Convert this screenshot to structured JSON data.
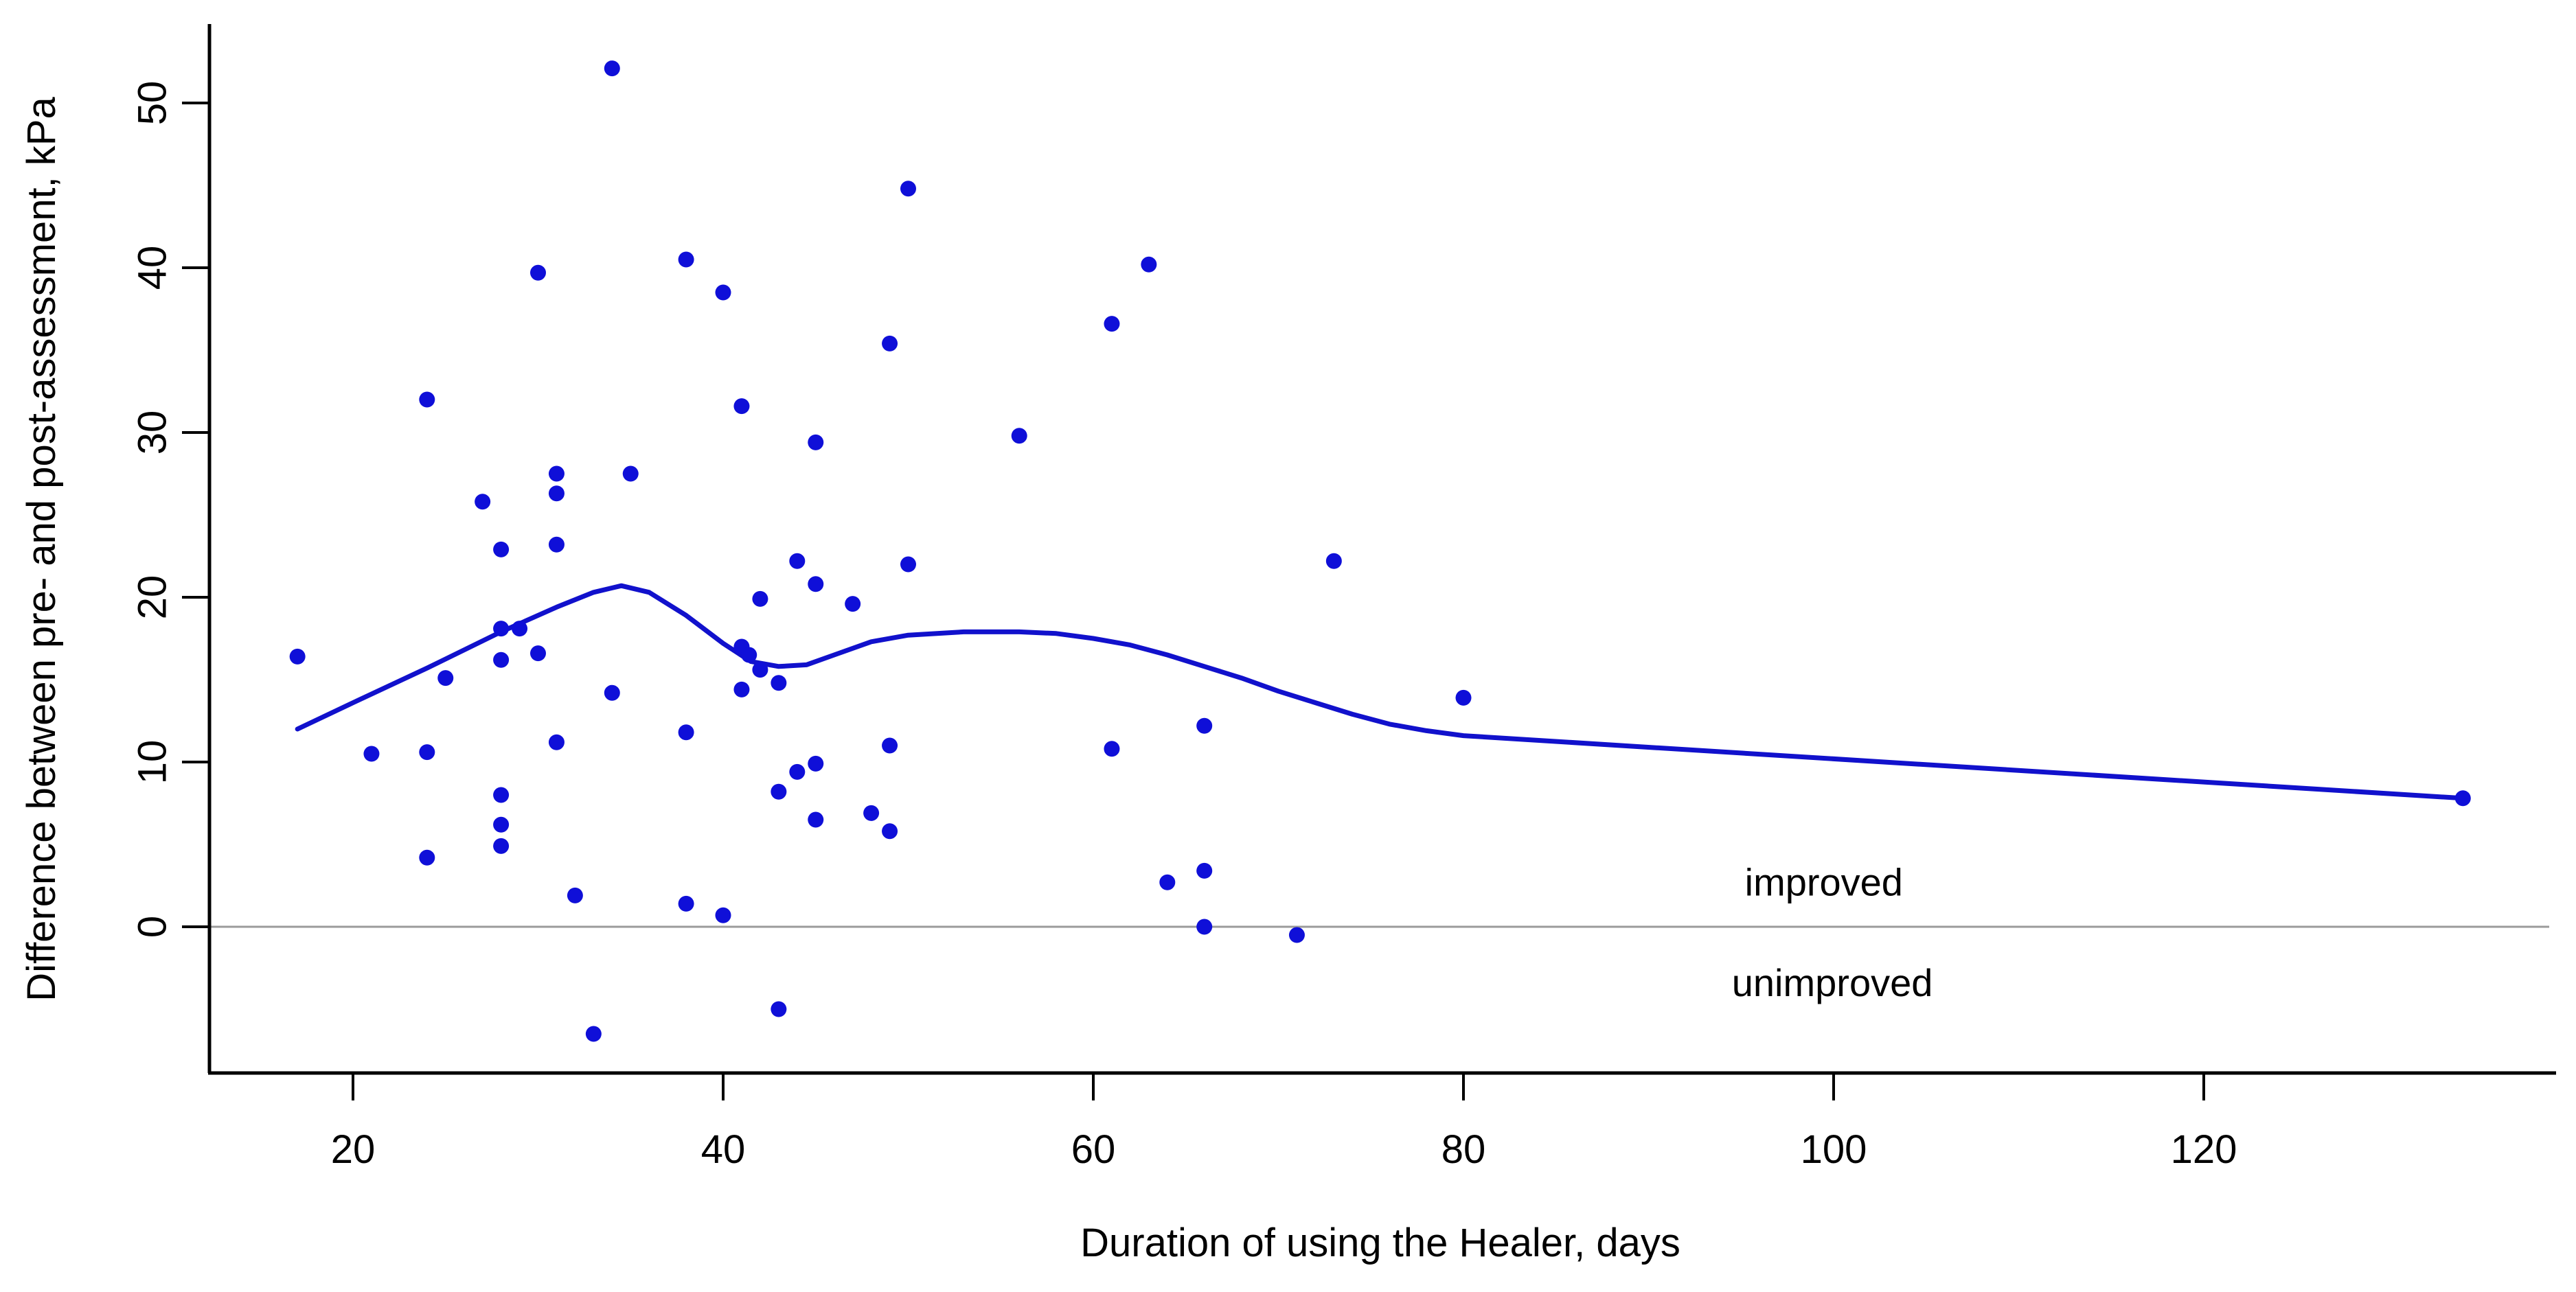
{
  "chart_data": {
    "type": "scatter",
    "title": "",
    "xlabel": "Duration of using the Healer, days",
    "ylabel": "Difference between pre- and post-assessment, kPa",
    "xlim": [
      12.2,
      139.2
    ],
    "ylim": [
      -8.9,
      54.6
    ],
    "x_ticks": [
      20,
      40,
      60,
      80,
      100,
      120
    ],
    "y_ticks": [
      0,
      10,
      20,
      30,
      40,
      50
    ],
    "grid": false,
    "legend": "none",
    "point_color": "#0f0fd8",
    "line_color": "#1111cc",
    "zero_line_color": "#9b9b9b",
    "axis_color": "#000000",
    "annotations": [
      {
        "id": "improved",
        "text": "improved",
        "x": 95.2,
        "y": 2.7
      },
      {
        "id": "unimproved",
        "text": "unimproved",
        "x": 94.5,
        "y": -3.4
      }
    ],
    "points": [
      [
        17,
        16.4
      ],
      [
        21,
        10.5
      ],
      [
        24,
        32.0
      ],
      [
        24,
        10.6
      ],
      [
        24,
        4.2
      ],
      [
        25,
        15.1
      ],
      [
        27,
        25.8
      ],
      [
        28,
        22.9
      ],
      [
        28,
        18.1
      ],
      [
        28,
        16.2
      ],
      [
        28,
        8.0
      ],
      [
        28,
        6.2
      ],
      [
        28,
        4.9
      ],
      [
        29,
        18.1
      ],
      [
        30,
        39.7
      ],
      [
        30,
        16.6
      ],
      [
        31,
        27.5
      ],
      [
        31,
        26.3
      ],
      [
        31,
        23.2
      ],
      [
        31,
        11.2
      ],
      [
        32,
        1.9
      ],
      [
        33,
        -6.5
      ],
      [
        34,
        52.1
      ],
      [
        34,
        14.2
      ],
      [
        35,
        27.5
      ],
      [
        38,
        40.5
      ],
      [
        38,
        11.8
      ],
      [
        38,
        1.4
      ],
      [
        40,
        38.5
      ],
      [
        40,
        0.7
      ],
      [
        41,
        31.6
      ],
      [
        41,
        17.0
      ],
      [
        41.4,
        16.5
      ],
      [
        41,
        14.4
      ],
      [
        42,
        19.9
      ],
      [
        42,
        15.6
      ],
      [
        43,
        14.8
      ],
      [
        43,
        8.2
      ],
      [
        43,
        -5.0
      ],
      [
        44,
        22.2
      ],
      [
        44,
        9.4
      ],
      [
        45,
        29.4
      ],
      [
        45,
        20.8
      ],
      [
        45,
        9.9
      ],
      [
        45,
        6.5
      ],
      [
        47,
        19.6
      ],
      [
        48,
        6.9
      ],
      [
        49,
        35.4
      ],
      [
        49,
        11.0
      ],
      [
        49,
        5.8
      ],
      [
        50,
        44.8
      ],
      [
        50,
        22.0
      ],
      [
        56,
        29.8
      ],
      [
        61,
        36.6
      ],
      [
        61,
        10.8
      ],
      [
        63,
        40.2
      ],
      [
        64,
        2.7
      ],
      [
        66,
        12.2
      ],
      [
        66,
        3.4
      ],
      [
        66,
        0.0
      ],
      [
        71,
        -0.5
      ],
      [
        73,
        22.2
      ],
      [
        80,
        13.9
      ],
      [
        134,
        7.8
      ]
    ],
    "loess_line": [
      [
        17,
        12.0
      ],
      [
        20,
        13.6
      ],
      [
        24,
        15.7
      ],
      [
        28,
        17.9
      ],
      [
        31,
        19.4
      ],
      [
        33,
        20.3
      ],
      [
        34.5,
        20.7
      ],
      [
        36,
        20.3
      ],
      [
        38,
        18.9
      ],
      [
        40,
        17.2
      ],
      [
        41.5,
        16.1
      ],
      [
        43,
        15.8
      ],
      [
        44.5,
        15.9
      ],
      [
        46,
        16.5
      ],
      [
        48,
        17.3
      ],
      [
        50,
        17.7
      ],
      [
        53,
        17.9
      ],
      [
        56,
        17.9
      ],
      [
        58,
        17.8
      ],
      [
        60,
        17.5
      ],
      [
        62,
        17.1
      ],
      [
        64,
        16.5
      ],
      [
        66,
        15.8
      ],
      [
        68,
        15.1
      ],
      [
        70,
        14.3
      ],
      [
        72,
        13.6
      ],
      [
        74,
        12.9
      ],
      [
        76,
        12.3
      ],
      [
        78,
        11.9
      ],
      [
        80,
        11.6
      ],
      [
        134,
        7.8
      ]
    ]
  }
}
